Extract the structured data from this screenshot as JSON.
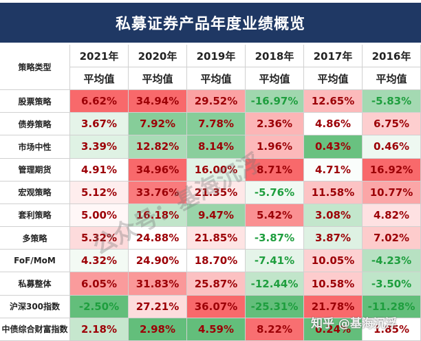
{
  "header": {
    "title": "私募证券产品年度业绩概览"
  },
  "table": {
    "corner": "策略类型",
    "years": [
      "2021年",
      "2020年",
      "2019年",
      "2018年",
      "2017年",
      "2016年"
    ],
    "subheader": [
      "平均值",
      "平均值",
      "平均值",
      "平均值",
      "平均值",
      "平均值"
    ],
    "rows": [
      {
        "name": "股票策略",
        "cells": [
          "6.62%",
          "34.94%",
          "29.52%",
          "-16.97%",
          "12.65%",
          "-5.83%"
        ]
      },
      {
        "name": "债券策略",
        "cells": [
          "3.67%",
          "7.92%",
          "7.78%",
          "2.36%",
          "4.86%",
          "6.75%"
        ]
      },
      {
        "name": "市场中性",
        "cells": [
          "3.39%",
          "12.82%",
          "8.14%",
          "1.96%",
          "0.43%",
          "0.46%"
        ]
      },
      {
        "name": "管理期货",
        "cells": [
          "4.91%",
          "34.96%",
          "16.00%",
          "8.71%",
          "4.71%",
          "16.92%"
        ]
      },
      {
        "name": "宏观策略",
        "cells": [
          "5.12%",
          "33.76%",
          "21.35%",
          "-5.76%",
          "11.58%",
          "10.77%"
        ]
      },
      {
        "name": "套利策略",
        "cells": [
          "5.00%",
          "16.18%",
          "9.47%",
          "5.42%",
          "3.08%",
          "4.82%"
        ]
      },
      {
        "name": "多策略",
        "cells": [
          "5.32%",
          "24.88%",
          "21.85%",
          "-3.87%",
          "3.87%",
          "7.02%"
        ]
      },
      {
        "name": "FoF/MoM",
        "cells": [
          "4.32%",
          "24.90%",
          "18.70%",
          "-7.41%",
          "10.05%",
          "-4.23%"
        ]
      },
      {
        "name": "私募整体",
        "cells": [
          "6.05%",
          "31.83%",
          "25.87%",
          "-12.44%",
          "10.58%",
          "-3.50%"
        ]
      },
      {
        "name": "沪深300指数",
        "cells": [
          "-2.50%",
          "27.21%",
          "36.07%",
          "-25.31%",
          "21.78%",
          "-11.28%"
        ]
      },
      {
        "name": "中债综合财富指数",
        "cells": [
          "2.18%",
          "2.98%",
          "4.59%",
          "8.22%",
          "0.24%",
          "1.85%"
        ]
      }
    ]
  },
  "watermarks": {
    "center": "公众号：基海沉浮",
    "corner": "知乎 @基海沉浮"
  }
}
